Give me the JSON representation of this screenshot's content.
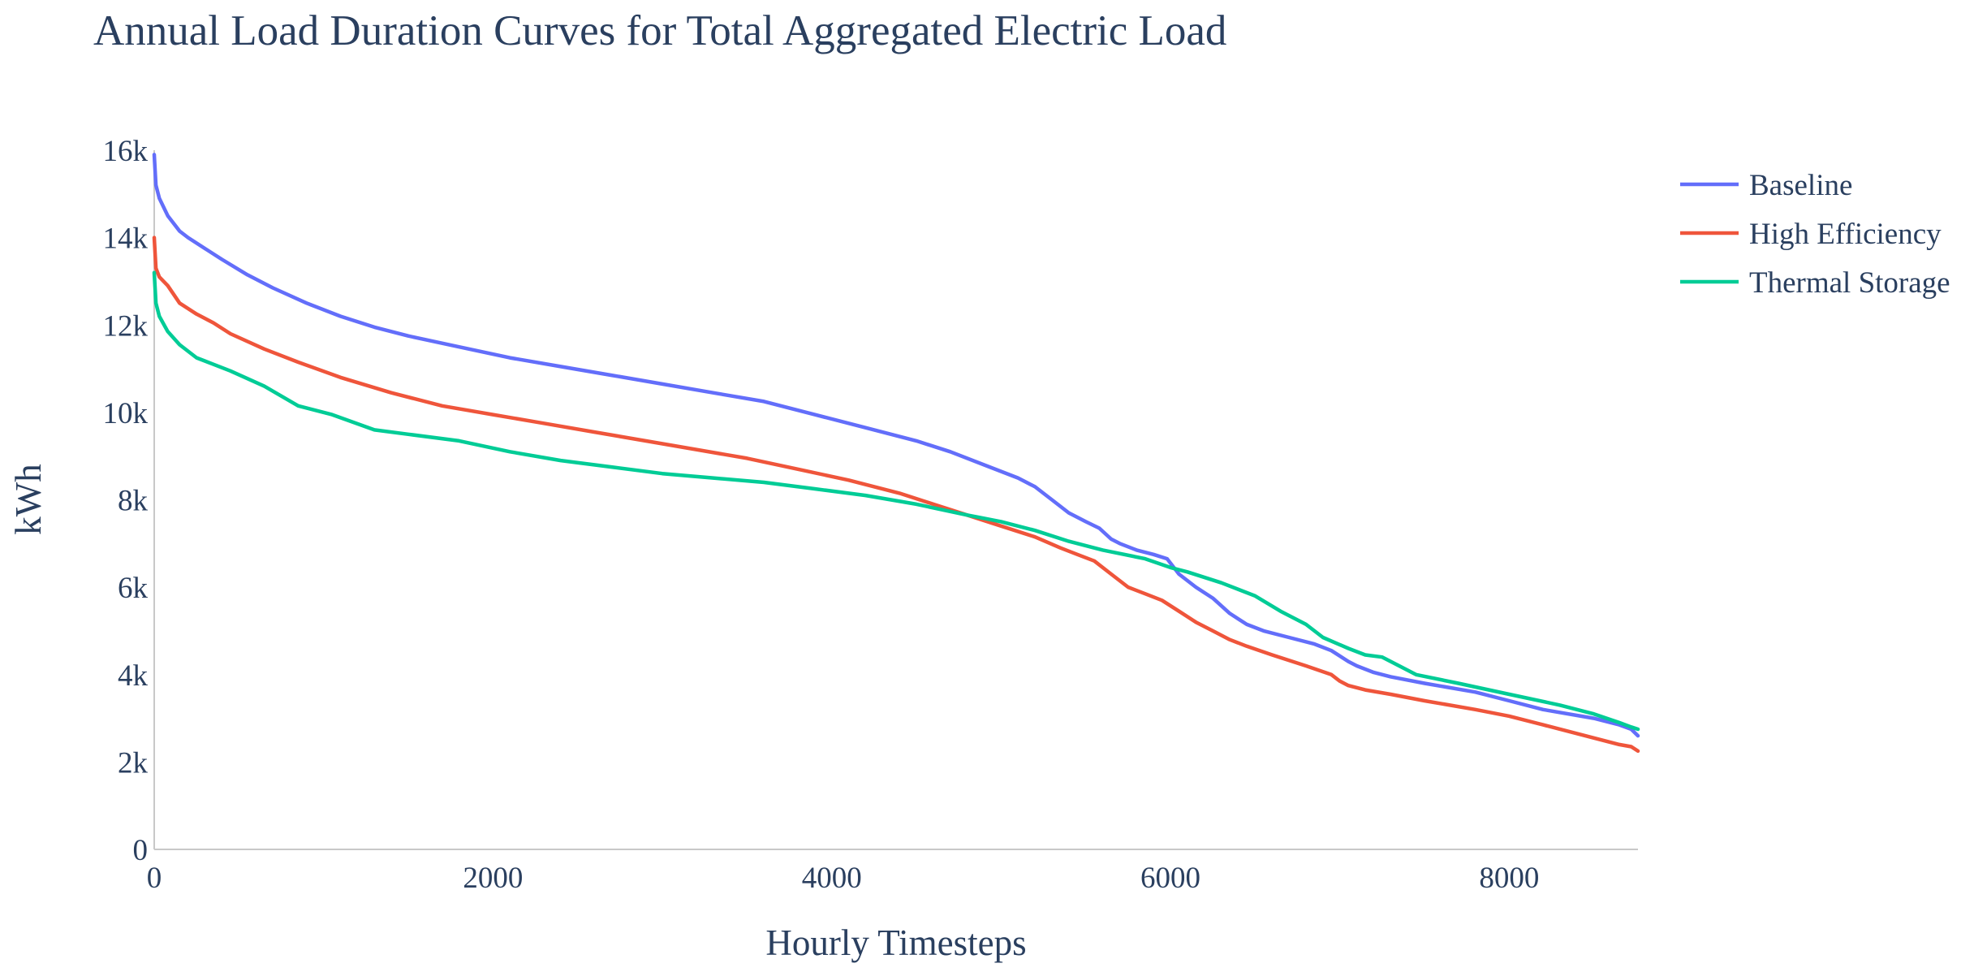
{
  "chart_data": {
    "type": "line",
    "title": "Annual Load Duration Curves for Total Aggregated Electric Load",
    "xlabel": "Hourly Timesteps",
    "ylabel": "kWh",
    "xlim": [
      0,
      8760
    ],
    "ylim": [
      0,
      16000
    ],
    "xticks": [
      0,
      2000,
      4000,
      6000,
      8000
    ],
    "xtick_labels": [
      "0",
      "2000",
      "4000",
      "6000",
      "8000"
    ],
    "yticks": [
      0,
      2000,
      4000,
      6000,
      8000,
      10000,
      12000,
      14000,
      16000
    ],
    "ytick_labels": [
      "0",
      "2k",
      "4k",
      "6k",
      "8k",
      "10k",
      "12k",
      "14k",
      "16k"
    ],
    "grid": false,
    "legend_position": "top-right",
    "series": [
      {
        "name": "Baseline",
        "color": "#636efa",
        "x": [
          0,
          10,
          30,
          80,
          150,
          200,
          300,
          400,
          550,
          700,
          900,
          1100,
          1300,
          1500,
          1800,
          2100,
          2400,
          2700,
          3000,
          3300,
          3600,
          3900,
          4200,
          4500,
          4700,
          4900,
          5100,
          5200,
          5300,
          5400,
          5500,
          5580,
          5650,
          5700,
          5800,
          5900,
          5980,
          6050,
          6150,
          6250,
          6350,
          6450,
          6550,
          6700,
          6850,
          6950,
          7050,
          7100,
          7200,
          7300,
          7500,
          7800,
          8000,
          8200,
          8500,
          8650,
          8720,
          8760
        ],
        "values": [
          15900,
          15200,
          14900,
          14500,
          14150,
          14000,
          13750,
          13500,
          13150,
          12850,
          12500,
          12200,
          11950,
          11750,
          11500,
          11250,
          11050,
          10850,
          10650,
          10450,
          10250,
          9950,
          9650,
          9350,
          9100,
          8800,
          8500,
          8300,
          8000,
          7700,
          7500,
          7350,
          7100,
          7000,
          6850,
          6750,
          6650,
          6300,
          6000,
          5750,
          5400,
          5150,
          5000,
          4850,
          4700,
          4550,
          4300,
          4200,
          4050,
          3950,
          3800,
          3600,
          3400,
          3200,
          3000,
          2850,
          2750,
          2600
        ]
      },
      {
        "name": "High Efficiency",
        "color": "#ef553b",
        "x": [
          0,
          10,
          30,
          80,
          150,
          250,
          350,
          450,
          650,
          850,
          1100,
          1400,
          1700,
          2000,
          2300,
          2600,
          2900,
          3200,
          3500,
          3800,
          4100,
          4400,
          4600,
          4800,
          5000,
          5200,
          5350,
          5450,
          5550,
          5650,
          5750,
          5850,
          5950,
          6050,
          6150,
          6250,
          6350,
          6450,
          6600,
          6800,
          6950,
          7000,
          7050,
          7150,
          7300,
          7500,
          7800,
          8000,
          8200,
          8500,
          8650,
          8720,
          8760
        ],
        "values": [
          14000,
          13300,
          13100,
          12900,
          12500,
          12250,
          12050,
          11800,
          11450,
          11150,
          10800,
          10450,
          10150,
          9950,
          9750,
          9550,
          9350,
          9150,
          8950,
          8700,
          8450,
          8150,
          7900,
          7650,
          7400,
          7150,
          6900,
          6750,
          6600,
          6300,
          6000,
          5850,
          5700,
          5450,
          5200,
          5000,
          4800,
          4650,
          4450,
          4200,
          4000,
          3850,
          3750,
          3650,
          3550,
          3400,
          3200,
          3050,
          2850,
          2550,
          2400,
          2350,
          2250
        ]
      },
      {
        "name": "Thermal Storage",
        "color": "#00cc96",
        "x": [
          0,
          10,
          30,
          80,
          150,
          250,
          350,
          450,
          650,
          850,
          1050,
          1300,
          1500,
          1800,
          2100,
          2400,
          2700,
          3000,
          3300,
          3600,
          3900,
          4200,
          4500,
          4800,
          5000,
          5200,
          5400,
          5600,
          5850,
          6000,
          6100,
          6300,
          6500,
          6650,
          6800,
          6900,
          7050,
          7150,
          7250,
          7350,
          7450,
          7700,
          8000,
          8300,
          8500,
          8650,
          8720,
          8760
        ],
        "values": [
          13200,
          12500,
          12200,
          11850,
          11550,
          11250,
          11100,
          10950,
          10600,
          10150,
          9950,
          9600,
          9500,
          9350,
          9100,
          8900,
          8750,
          8600,
          8500,
          8400,
          8250,
          8100,
          7900,
          7650,
          7500,
          7300,
          7050,
          6850,
          6650,
          6450,
          6350,
          6100,
          5800,
          5450,
          5150,
          4850,
          4600,
          4450,
          4400,
          4200,
          4000,
          3800,
          3550,
          3300,
          3100,
          2900,
          2800,
          2750
        ]
      }
    ]
  }
}
